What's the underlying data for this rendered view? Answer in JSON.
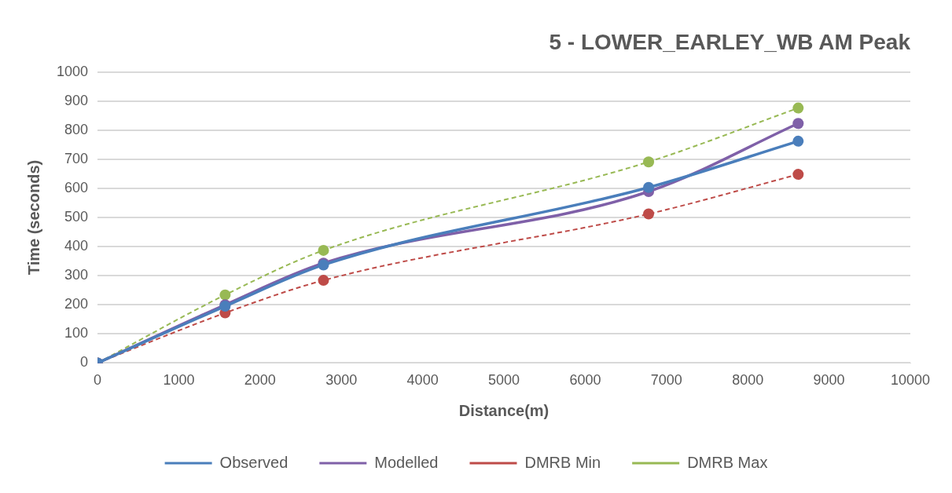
{
  "chart_data": {
    "type": "line",
    "title": "5 - LOWER_EARLEY_WB AM Peak",
    "xlabel": "Distance(m)",
    "ylabel": "Time (seconds)",
    "x": [
      0,
      1570,
      2780,
      6780,
      8620
    ],
    "series": [
      {
        "name": "Observed",
        "color": "#4a7ebb",
        "values": [
          0,
          195,
          337,
          603,
          762
        ],
        "line_style": "solid"
      },
      {
        "name": "Modelled",
        "color": "#7f60a8",
        "values": [
          0,
          200,
          343,
          589,
          823
        ],
        "line_style": "solid"
      },
      {
        "name": "DMRB Min",
        "color": "#be4b48",
        "values": [
          0,
          172,
          284,
          512,
          648
        ],
        "line_style": "dashed"
      },
      {
        "name": "DMRB Max",
        "color": "#98b954",
        "values": [
          0,
          234,
          387,
          691,
          876
        ],
        "line_style": "dashed"
      }
    ],
    "xlim": [
      0,
      10000
    ],
    "xticks": [
      0,
      1000,
      2000,
      3000,
      4000,
      5000,
      6000,
      7000,
      8000,
      9000,
      10000
    ],
    "ylim": [
      0,
      1000
    ],
    "yticks": [
      0,
      100,
      200,
      300,
      400,
      500,
      600,
      700,
      800,
      900,
      1000
    ],
    "grid": "y",
    "legend": "bottom",
    "marker": "circle"
  }
}
